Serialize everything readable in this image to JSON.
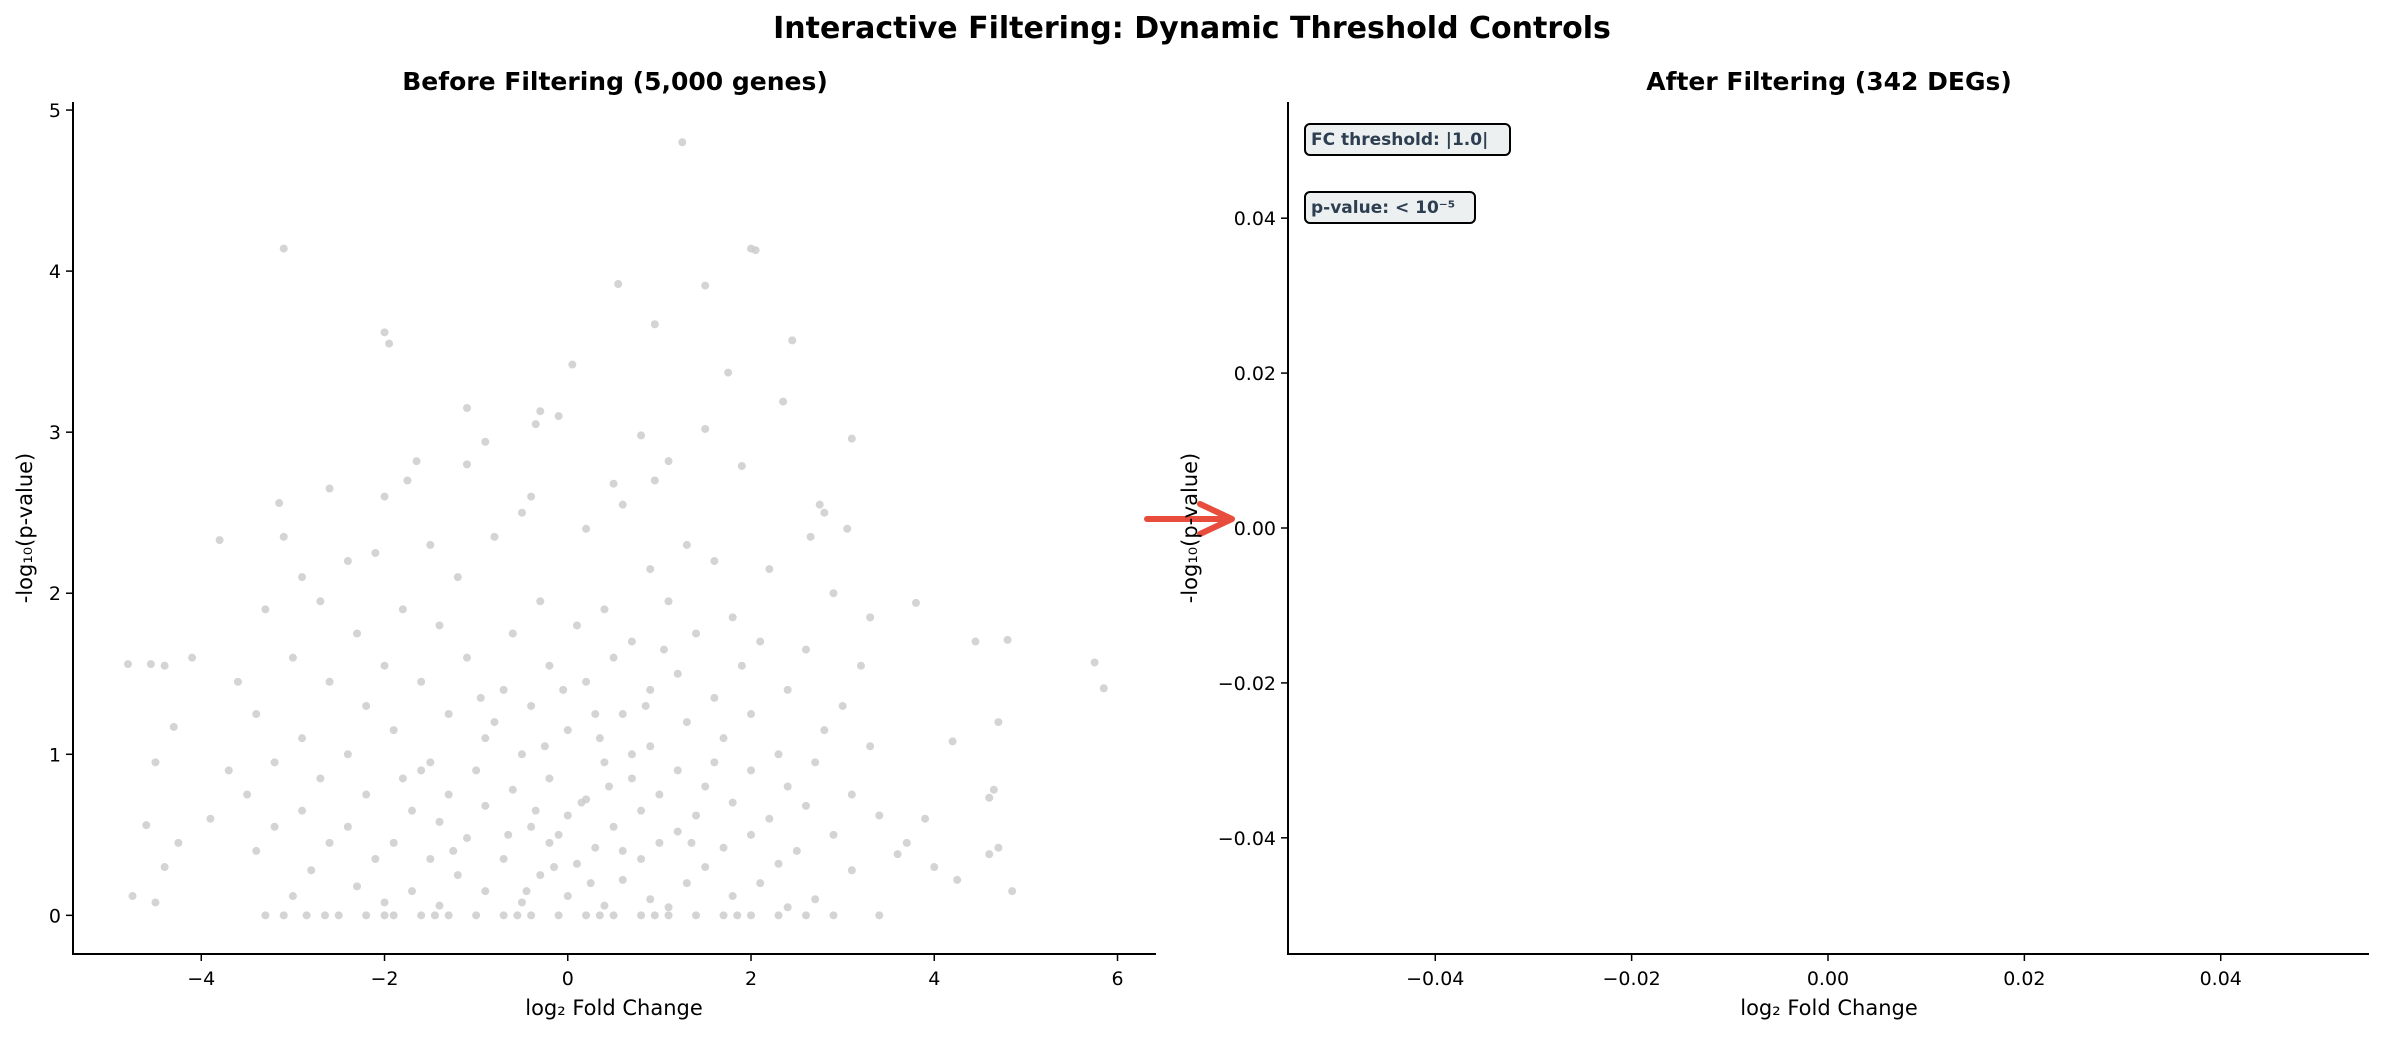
{
  "suptitle": "Interactive Filtering: Dynamic Threshold Controls",
  "colors": {
    "points": "#cccccc",
    "arrow": "#e74c3c",
    "annot_text": "#2c3e50",
    "annot_bg": "#ecf0f1"
  },
  "chart_data": [
    {
      "type": "scatter",
      "title": "Before Filtering (5,000 genes)",
      "xlabel": "log₂ Fold Change",
      "ylabel": "-log₁₀(p-value)",
      "xlim": [
        -5.4,
        6.42
      ],
      "ylim": [
        -0.24,
        5.05
      ],
      "xticks": [
        -4,
        -2,
        0,
        2,
        4,
        6
      ],
      "xtick_labels": [
        "−4",
        "−2",
        "0",
        "2",
        "4",
        "6"
      ],
      "yticks": [
        0,
        1,
        2,
        3,
        4,
        5
      ],
      "ytick_labels": [
        "0",
        "1",
        "2",
        "3",
        "4",
        "5"
      ],
      "grid": false,
      "points": [
        [
          1.25,
          4.8
        ],
        [
          -3.1,
          4.14
        ],
        [
          2.0,
          4.14
        ],
        [
          2.05,
          4.13
        ],
        [
          0.55,
          3.92
        ],
        [
          1.5,
          3.91
        ],
        [
          -2.0,
          3.62
        ],
        [
          -1.95,
          3.55
        ],
        [
          0.95,
          3.67
        ],
        [
          2.45,
          3.57
        ],
        [
          0.05,
          3.42
        ],
        [
          1.75,
          3.37
        ],
        [
          2.35,
          3.19
        ],
        [
          -1.1,
          3.15
        ],
        [
          -0.3,
          3.13
        ],
        [
          -0.1,
          3.1
        ],
        [
          -0.35,
          3.05
        ],
        [
          3.1,
          2.96
        ],
        [
          1.5,
          3.02
        ],
        [
          0.8,
          2.98
        ],
        [
          -0.9,
          2.94
        ],
        [
          -1.65,
          2.82
        ],
        [
          -1.75,
          2.7
        ],
        [
          -1.1,
          2.8
        ],
        [
          1.1,
          2.82
        ],
        [
          1.9,
          2.79
        ],
        [
          0.95,
          2.7
        ],
        [
          0.5,
          2.68
        ],
        [
          -2.6,
          2.65
        ],
        [
          -3.15,
          2.56
        ],
        [
          2.75,
          2.55
        ],
        [
          2.8,
          2.5
        ],
        [
          -0.4,
          2.6
        ],
        [
          -2.0,
          2.6
        ],
        [
          0.6,
          2.55
        ],
        [
          -3.8,
          2.33
        ],
        [
          -3.1,
          2.35
        ],
        [
          3.05,
          2.4
        ],
        [
          2.65,
          2.35
        ],
        [
          -0.5,
          2.5
        ],
        [
          5.75,
          1.57
        ],
        [
          5.85,
          1.41
        ],
        [
          4.8,
          1.71
        ],
        [
          4.45,
          1.7
        ],
        [
          -4.8,
          1.56
        ],
        [
          -4.75,
          0.12
        ],
        [
          4.85,
          0.15
        ],
        [
          3.8,
          1.94
        ],
        [
          -4.1,
          1.6
        ],
        [
          -4.4,
          1.55
        ],
        [
          -3.6,
          1.45
        ],
        [
          4.7,
          1.2
        ],
        [
          4.65,
          0.78
        ],
        [
          4.6,
          0.73
        ],
        [
          4.7,
          0.42
        ],
        [
          4.6,
          0.38
        ],
        [
          4.2,
          1.08
        ],
        [
          -4.55,
          1.56
        ],
        [
          -4.3,
          1.17
        ],
        [
          -4.5,
          0.95
        ],
        [
          -4.6,
          0.56
        ],
        [
          -4.25,
          0.45
        ],
        [
          -4.4,
          0.3
        ],
        [
          -4.5,
          0.08
        ],
        [
          -3.9,
          0.6
        ],
        [
          3.9,
          0.6
        ],
        [
          4.0,
          0.3
        ],
        [
          4.25,
          0.22
        ],
        [
          3.7,
          0.45
        ],
        [
          -3.7,
          0.9
        ],
        [
          -3.3,
          0
        ],
        [
          -3.1,
          0
        ],
        [
          -2.85,
          0
        ],
        [
          -2.5,
          0
        ],
        [
          -2.2,
          0
        ],
        [
          -1.9,
          0
        ],
        [
          -1.6,
          0
        ],
        [
          -1.3,
          0
        ],
        [
          -1.0,
          0
        ],
        [
          -0.7,
          0
        ],
        [
          -0.4,
          0
        ],
        [
          -0.1,
          0
        ],
        [
          0.2,
          0
        ],
        [
          0.5,
          0
        ],
        [
          0.8,
          0
        ],
        [
          1.1,
          0
        ],
        [
          1.4,
          0
        ],
        [
          1.7,
          0
        ],
        [
          2.0,
          0
        ],
        [
          2.3,
          0
        ],
        [
          2.6,
          0
        ],
        [
          2.9,
          0
        ],
        [
          3.4,
          0
        ],
        [
          -2.0,
          0
        ],
        [
          -0.55,
          0
        ],
        [
          0.35,
          0
        ],
        [
          0.95,
          0
        ],
        [
          -1.45,
          0
        ],
        [
          1.85,
          0
        ],
        [
          -2.65,
          0
        ],
        [
          -2.4,
          2.2
        ],
        [
          -2.1,
          2.25
        ],
        [
          -1.5,
          2.3
        ],
        [
          -0.8,
          2.35
        ],
        [
          0.2,
          2.4
        ],
        [
          1.3,
          2.3
        ],
        [
          1.6,
          2.2
        ],
        [
          2.2,
          2.15
        ],
        [
          -1.2,
          2.1
        ],
        [
          0.9,
          2.15
        ],
        [
          -2.9,
          2.1
        ],
        [
          -3.3,
          1.9
        ],
        [
          3.3,
          1.85
        ],
        [
          -2.7,
          1.95
        ],
        [
          2.9,
          2.0
        ],
        [
          -1.8,
          1.9
        ],
        [
          -0.3,
          1.95
        ],
        [
          0.4,
          1.9
        ],
        [
          1.1,
          1.95
        ],
        [
          1.8,
          1.85
        ],
        [
          -2.3,
          1.75
        ],
        [
          -1.4,
          1.8
        ],
        [
          -0.6,
          1.75
        ],
        [
          0.1,
          1.8
        ],
        [
          0.7,
          1.7
        ],
        [
          1.4,
          1.75
        ],
        [
          2.1,
          1.7
        ],
        [
          2.6,
          1.65
        ],
        [
          -3.0,
          1.6
        ],
        [
          3.2,
          1.55
        ],
        [
          -2.0,
          1.55
        ],
        [
          -1.1,
          1.6
        ],
        [
          -0.2,
          1.55
        ],
        [
          0.5,
          1.6
        ],
        [
          1.2,
          1.5
        ],
        [
          1.9,
          1.55
        ],
        [
          -2.6,
          1.45
        ],
        [
          -1.6,
          1.45
        ],
        [
          -0.7,
          1.4
        ],
        [
          0.2,
          1.45
        ],
        [
          0.9,
          1.4
        ],
        [
          1.6,
          1.35
        ],
        [
          2.4,
          1.4
        ],
        [
          3.0,
          1.3
        ],
        [
          -3.4,
          1.25
        ],
        [
          -2.2,
          1.3
        ],
        [
          -1.3,
          1.25
        ],
        [
          -0.4,
          1.3
        ],
        [
          0.6,
          1.25
        ],
        [
          1.3,
          1.2
        ],
        [
          2.0,
          1.25
        ],
        [
          2.8,
          1.15
        ],
        [
          -2.9,
          1.1
        ],
        [
          -1.9,
          1.15
        ],
        [
          -0.9,
          1.1
        ],
        [
          0.0,
          1.15
        ],
        [
          0.9,
          1.05
        ],
        [
          1.7,
          1.1
        ],
        [
          2.3,
          1.0
        ],
        [
          3.3,
          1.05
        ],
        [
          -3.2,
          0.95
        ],
        [
          -2.4,
          1.0
        ],
        [
          -1.5,
          0.95
        ],
        [
          -0.5,
          1.0
        ],
        [
          0.4,
          0.95
        ],
        [
          1.2,
          0.9
        ],
        [
          2.0,
          0.9
        ],
        [
          2.7,
          0.95
        ],
        [
          -2.7,
          0.85
        ],
        [
          -1.8,
          0.85
        ],
        [
          -1.0,
          0.9
        ],
        [
          -0.2,
          0.85
        ],
        [
          0.7,
          0.85
        ],
        [
          1.5,
          0.8
        ],
        [
          2.4,
          0.8
        ],
        [
          3.1,
          0.75
        ],
        [
          -3.5,
          0.75
        ],
        [
          -2.2,
          0.75
        ],
        [
          -1.3,
          0.75
        ],
        [
          -0.6,
          0.78
        ],
        [
          0.2,
          0.72
        ],
        [
          1.0,
          0.75
        ],
        [
          1.8,
          0.7
        ],
        [
          2.6,
          0.68
        ],
        [
          -2.9,
          0.65
        ],
        [
          -1.7,
          0.65
        ],
        [
          -0.9,
          0.68
        ],
        [
          0.0,
          0.62
        ],
        [
          0.8,
          0.65
        ],
        [
          1.4,
          0.62
        ],
        [
          2.2,
          0.6
        ],
        [
          3.4,
          0.62
        ],
        [
          -3.2,
          0.55
        ],
        [
          -2.4,
          0.55
        ],
        [
          -1.4,
          0.58
        ],
        [
          -0.4,
          0.55
        ],
        [
          0.5,
          0.55
        ],
        [
          1.2,
          0.52
        ],
        [
          2.0,
          0.5
        ],
        [
          2.9,
          0.5
        ],
        [
          -2.6,
          0.45
        ],
        [
          -1.9,
          0.45
        ],
        [
          -1.1,
          0.48
        ],
        [
          -0.2,
          0.45
        ],
        [
          0.3,
          0.42
        ],
        [
          1.0,
          0.45
        ],
        [
          1.7,
          0.42
        ],
        [
          2.5,
          0.4
        ],
        [
          -3.4,
          0.4
        ],
        [
          3.6,
          0.38
        ],
        [
          -2.1,
          0.35
        ],
        [
          -1.5,
          0.35
        ],
        [
          -0.7,
          0.35
        ],
        [
          0.1,
          0.32
        ],
        [
          0.8,
          0.35
        ],
        [
          1.5,
          0.3
        ],
        [
          2.3,
          0.32
        ],
        [
          3.1,
          0.28
        ],
        [
          -2.8,
          0.28
        ],
        [
          -1.2,
          0.25
        ],
        [
          -0.3,
          0.25
        ],
        [
          0.6,
          0.22
        ],
        [
          1.3,
          0.2
        ],
        [
          2.1,
          0.2
        ],
        [
          -2.3,
          0.18
        ],
        [
          -1.7,
          0.15
        ],
        [
          -0.9,
          0.15
        ],
        [
          0.0,
          0.12
        ],
        [
          0.9,
          0.1
        ],
        [
          1.8,
          0.12
        ],
        [
          2.7,
          0.1
        ],
        [
          -3.0,
          0.12
        ],
        [
          -0.5,
          0.08
        ],
        [
          0.4,
          0.06
        ],
        [
          1.1,
          0.05
        ],
        [
          -1.4,
          0.06
        ],
        [
          2.4,
          0.05
        ],
        [
          -2.0,
          0.08
        ],
        [
          -0.8,
          1.2
        ],
        [
          0.3,
          1.25
        ],
        [
          -0.1,
          0.5
        ],
        [
          0.15,
          0.7
        ],
        [
          -0.35,
          0.65
        ],
        [
          0.45,
          0.8
        ],
        [
          -0.65,
          0.5
        ],
        [
          0.6,
          0.4
        ],
        [
          -0.15,
          0.3
        ],
        [
          0.25,
          0.2
        ],
        [
          -0.45,
          0.15
        ],
        [
          0.7,
          1.0
        ],
        [
          -1.25,
          0.4
        ],
        [
          1.35,
          0.45
        ],
        [
          -1.6,
          0.9
        ],
        [
          1.6,
          0.95
        ],
        [
          -0.05,
          1.4
        ],
        [
          0.35,
          1.1
        ],
        [
          -0.25,
          1.05
        ],
        [
          0.85,
          1.3
        ],
        [
          -0.95,
          1.35
        ],
        [
          1.05,
          1.65
        ]
      ]
    },
    {
      "type": "scatter",
      "title": "After Filtering (342 DEGs)",
      "xlabel": "log₂ Fold Change",
      "ylabel": "-log₁₀(p-value)",
      "xlim": [
        -0.055,
        0.055
      ],
      "ylim": [
        -0.055,
        0.055
      ],
      "xticks": [
        -0.04,
        -0.02,
        0.0,
        0.02,
        0.04
      ],
      "xtick_labels": [
        "−0.04",
        "−0.02",
        "0.00",
        "0.02",
        "0.04"
      ],
      "yticks": [
        -0.04,
        -0.02,
        0.0,
        0.02,
        0.04
      ],
      "ytick_labels": [
        "−0.04",
        "−0.02",
        "0.00",
        "0.02",
        "0.04"
      ],
      "grid": false,
      "points": [],
      "annotations": [
        "FC threshold: |1.0|",
        "p-value: < 10⁻⁵"
      ]
    }
  ]
}
